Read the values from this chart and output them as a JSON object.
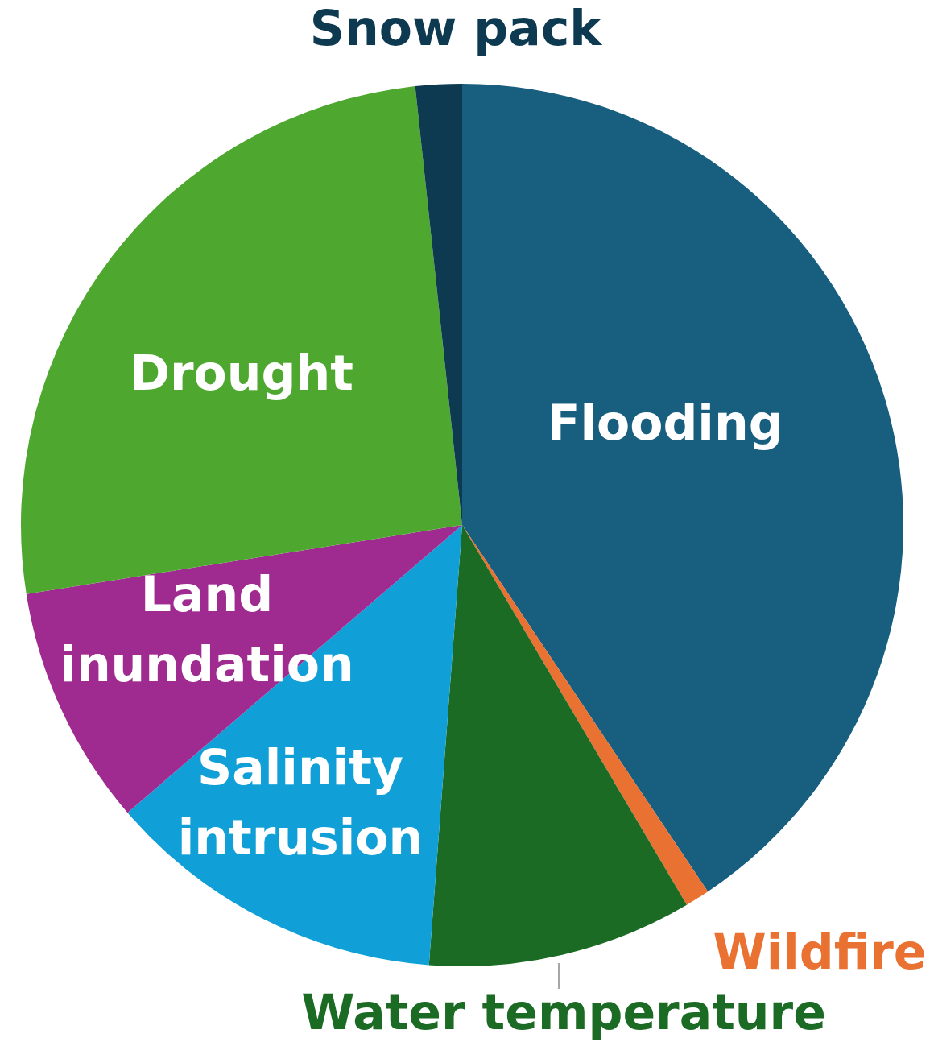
{
  "chart_data": {
    "type": "pie",
    "categories": [
      "Flooding",
      "Wildfire",
      "Water temperature",
      "Salinity intrusion",
      "Land inundation",
      "Drought",
      "Snow pack"
    ],
    "values": [
      40.6,
      0.9,
      9.7,
      12.5,
      8.8,
      25.8,
      1.7
    ],
    "colors": [
      "#175e7f",
      "#e97132",
      "#1b6b24",
      "#109fd6",
      "#a02b90",
      "#4ea72e",
      "#0e3a51"
    ]
  }
}
